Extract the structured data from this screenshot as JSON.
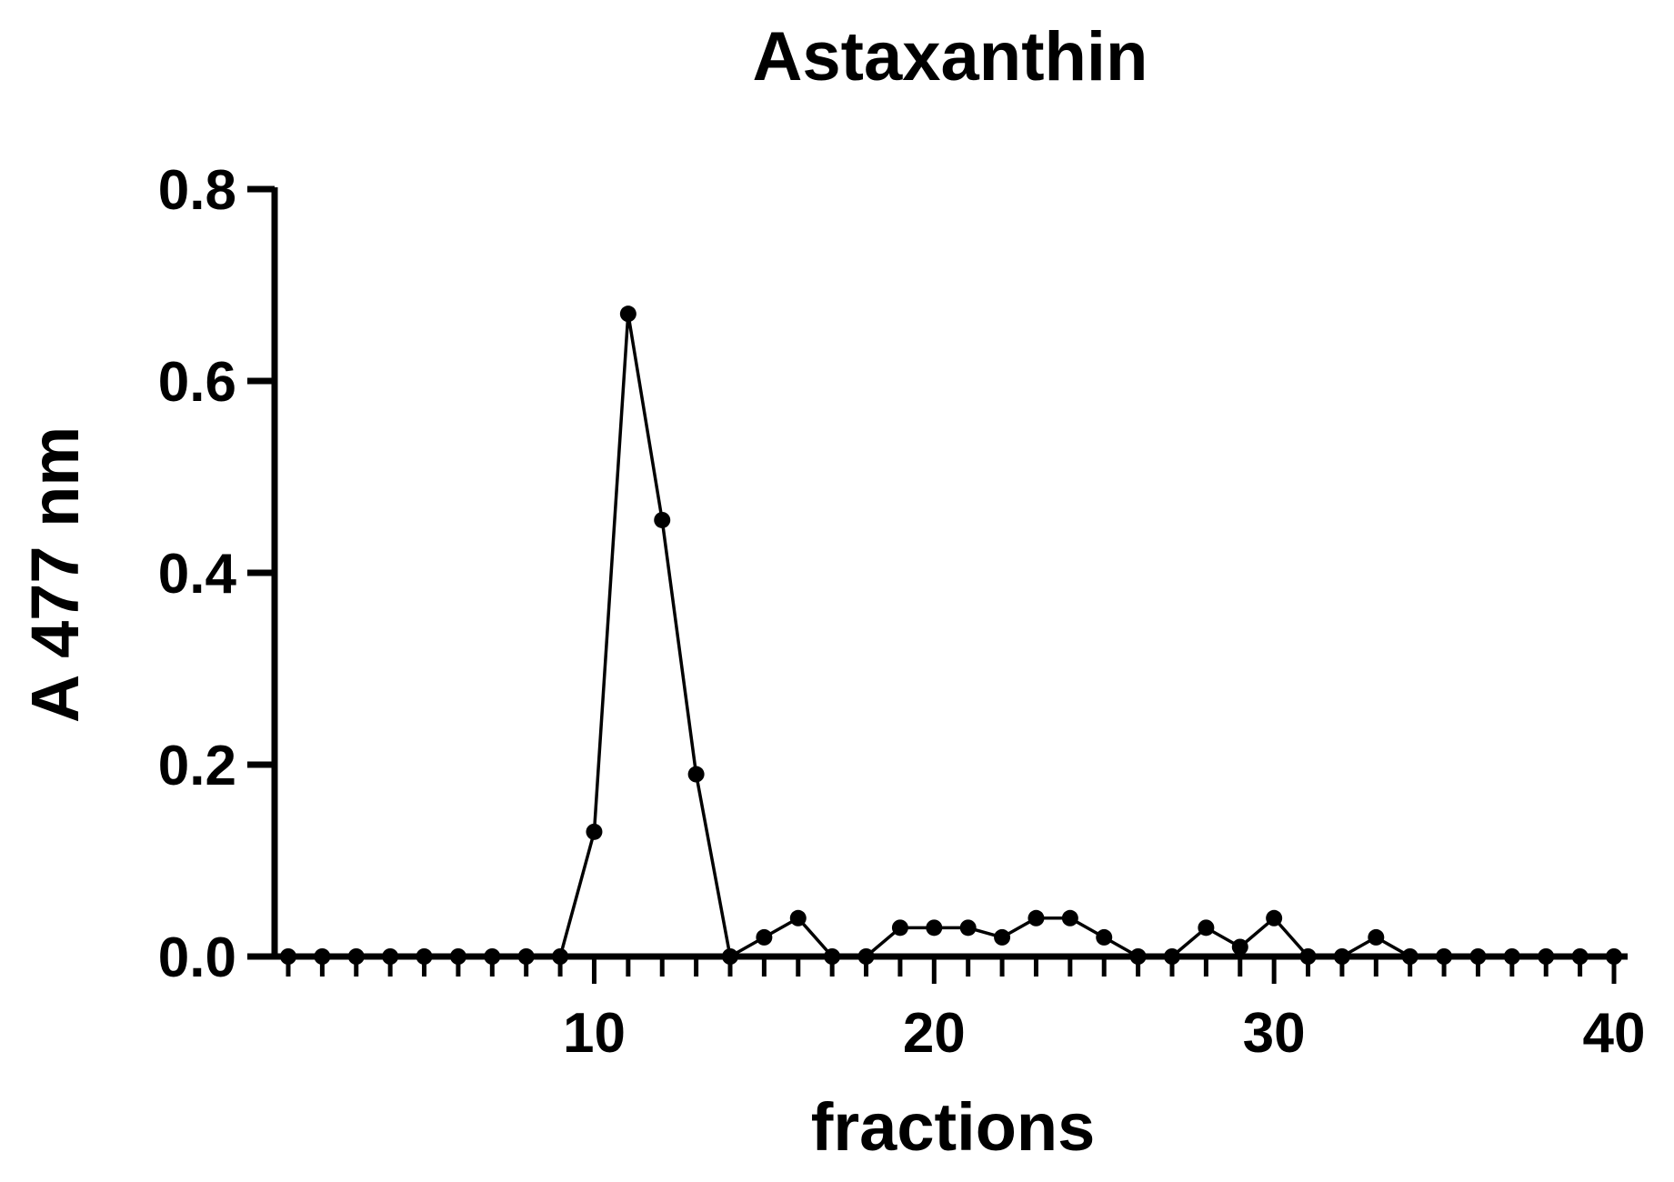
{
  "chart_data": {
    "type": "line",
    "title": "Astaxanthin",
    "xlabel": "fractions",
    "ylabel": "A 477 nm",
    "xlim": [
      1,
      40
    ],
    "ylim": [
      0,
      0.8
    ],
    "x_ticks": [
      10,
      20,
      30,
      40
    ],
    "x_tick_labels": [
      "10",
      "20",
      "30",
      "40"
    ],
    "x_minor_ticks_every": 1,
    "y_ticks": [
      0.0,
      0.2,
      0.4,
      0.6,
      0.8
    ],
    "y_tick_labels": [
      "0.0",
      "0.2",
      "0.4",
      "0.6",
      "0.8"
    ],
    "grid": false,
    "legend": "none",
    "series": [
      {
        "color": "#000000",
        "marker": "circle",
        "x": [
          1,
          2,
          3,
          4,
          5,
          6,
          7,
          8,
          9,
          10,
          11,
          12,
          13,
          14,
          15,
          16,
          17,
          18,
          19,
          20,
          21,
          22,
          23,
          24,
          25,
          26,
          27,
          28,
          29,
          30,
          31,
          32,
          33,
          34,
          35,
          36,
          37,
          38,
          39,
          40
        ],
        "y": [
          0,
          0,
          0,
          0,
          0,
          0,
          0,
          0,
          0,
          0.13,
          0.67,
          0.455,
          0.19,
          0,
          0.02,
          0.04,
          0,
          0,
          0.03,
          0.03,
          0.03,
          0.02,
          0.04,
          0.04,
          0.02,
          0,
          0,
          0.03,
          0.01,
          0.04,
          0,
          0,
          0.02,
          0,
          0,
          0,
          0,
          0,
          0,
          0
        ]
      }
    ]
  }
}
